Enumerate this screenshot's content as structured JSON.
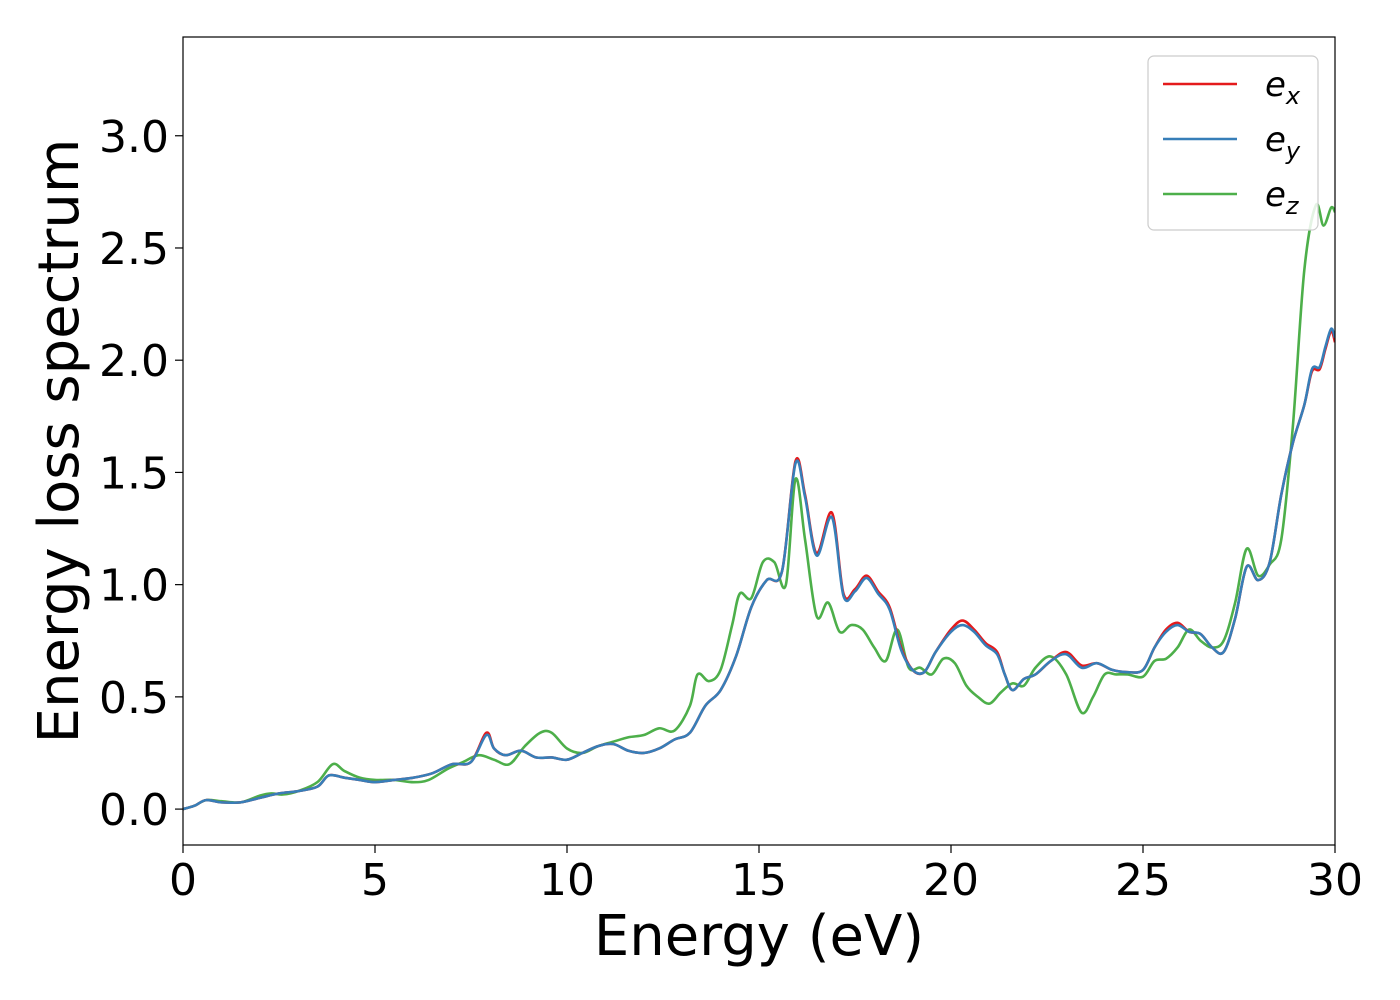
{
  "chart_data": {
    "type": "line",
    "title": "",
    "xlabel": "Energy (eV)",
    "ylabel": "Energy loss spectrum",
    "xlim": [
      0,
      30
    ],
    "ylim": [
      -0.16,
      3.44
    ],
    "xticks": [
      "0",
      "5",
      "10",
      "15",
      "20",
      "25",
      "30"
    ],
    "yticks": [
      "0.0",
      "0.5",
      "1.0",
      "1.5",
      "2.0",
      "2.5",
      "3.0"
    ],
    "grid": false,
    "legend_position": "top-right",
    "series": [
      {
        "name": "e_x",
        "label_main": "e",
        "label_sub": "x",
        "color": "#e41a1c",
        "x": [
          0,
          0.3,
          0.6,
          1.0,
          1.5,
          2.0,
          2.5,
          3.0,
          3.5,
          3.8,
          4.2,
          4.6,
          5.0,
          5.5,
          6.0,
          6.5,
          7.0,
          7.5,
          7.9,
          8.1,
          8.4,
          8.8,
          9.2,
          9.6,
          10.0,
          10.4,
          10.8,
          11.2,
          11.6,
          12.0,
          12.4,
          12.8,
          13.2,
          13.6,
          14.0,
          14.4,
          14.8,
          15.2,
          15.6,
          15.95,
          16.2,
          16.5,
          16.9,
          17.2,
          17.5,
          17.8,
          18.1,
          18.4,
          18.7,
          19.0,
          19.3,
          19.6,
          20.0,
          20.3,
          20.6,
          20.9,
          21.2,
          21.4,
          21.6,
          21.9,
          22.2,
          22.6,
          23.0,
          23.4,
          23.8,
          24.2,
          24.6,
          25.0,
          25.3,
          25.6,
          25.9,
          26.2,
          26.5,
          26.8,
          27.1,
          27.4,
          27.7,
          28.0,
          28.3,
          28.6,
          28.9,
          29.2,
          29.4,
          29.6,
          29.75,
          29.9,
          30.0
        ],
        "y": [
          0.0,
          0.015,
          0.04,
          0.03,
          0.03,
          0.05,
          0.07,
          0.08,
          0.1,
          0.15,
          0.14,
          0.13,
          0.12,
          0.13,
          0.14,
          0.16,
          0.2,
          0.21,
          0.34,
          0.27,
          0.24,
          0.26,
          0.23,
          0.23,
          0.22,
          0.25,
          0.28,
          0.29,
          0.26,
          0.25,
          0.27,
          0.31,
          0.34,
          0.46,
          0.53,
          0.68,
          0.9,
          1.02,
          1.06,
          1.55,
          1.4,
          1.14,
          1.32,
          0.96,
          0.98,
          1.04,
          0.97,
          0.9,
          0.72,
          0.62,
          0.61,
          0.7,
          0.8,
          0.84,
          0.8,
          0.74,
          0.7,
          0.6,
          0.53,
          0.58,
          0.6,
          0.66,
          0.7,
          0.64,
          0.65,
          0.62,
          0.61,
          0.62,
          0.72,
          0.8,
          0.83,
          0.79,
          0.78,
          0.72,
          0.7,
          0.85,
          1.08,
          1.02,
          1.1,
          1.4,
          1.63,
          1.8,
          1.95,
          1.96,
          2.05,
          2.13,
          2.08
        ]
      },
      {
        "name": "e_y",
        "label_main": "e",
        "label_sub": "y",
        "color": "#377eb8",
        "x": [
          0,
          0.3,
          0.6,
          1.0,
          1.5,
          2.0,
          2.5,
          3.0,
          3.5,
          3.8,
          4.2,
          4.6,
          5.0,
          5.5,
          6.0,
          6.5,
          7.0,
          7.5,
          7.9,
          8.1,
          8.4,
          8.8,
          9.2,
          9.6,
          10.0,
          10.4,
          10.8,
          11.2,
          11.6,
          12.0,
          12.4,
          12.8,
          13.2,
          13.6,
          14.0,
          14.4,
          14.8,
          15.2,
          15.6,
          15.95,
          16.2,
          16.5,
          16.9,
          17.2,
          17.5,
          17.8,
          18.1,
          18.4,
          18.7,
          19.0,
          19.3,
          19.6,
          20.0,
          20.3,
          20.6,
          20.9,
          21.2,
          21.4,
          21.6,
          21.9,
          22.2,
          22.6,
          23.0,
          23.4,
          23.8,
          24.2,
          24.6,
          25.0,
          25.3,
          25.6,
          25.9,
          26.2,
          26.5,
          26.8,
          27.1,
          27.4,
          27.7,
          28.0,
          28.3,
          28.6,
          28.9,
          29.2,
          29.4,
          29.6,
          29.75,
          29.9,
          30.0
        ],
        "y": [
          0.0,
          0.015,
          0.04,
          0.03,
          0.03,
          0.05,
          0.07,
          0.08,
          0.1,
          0.15,
          0.14,
          0.13,
          0.12,
          0.13,
          0.14,
          0.16,
          0.2,
          0.21,
          0.33,
          0.27,
          0.24,
          0.26,
          0.23,
          0.23,
          0.22,
          0.25,
          0.28,
          0.29,
          0.26,
          0.25,
          0.27,
          0.31,
          0.34,
          0.46,
          0.53,
          0.68,
          0.9,
          1.02,
          1.06,
          1.54,
          1.39,
          1.13,
          1.3,
          0.95,
          0.97,
          1.03,
          0.96,
          0.89,
          0.71,
          0.62,
          0.61,
          0.7,
          0.79,
          0.82,
          0.79,
          0.73,
          0.69,
          0.6,
          0.53,
          0.58,
          0.6,
          0.66,
          0.69,
          0.63,
          0.65,
          0.62,
          0.61,
          0.62,
          0.72,
          0.79,
          0.82,
          0.79,
          0.78,
          0.72,
          0.7,
          0.85,
          1.08,
          1.02,
          1.1,
          1.4,
          1.63,
          1.8,
          1.96,
          1.97,
          2.06,
          2.14,
          2.1
        ]
      },
      {
        "name": "e_z",
        "label_main": "e",
        "label_sub": "z",
        "color": "#4daf4a",
        "x": [
          0,
          0.3,
          0.6,
          1.0,
          1.5,
          2.0,
          2.3,
          2.6,
          3.0,
          3.5,
          3.9,
          4.2,
          4.6,
          5.0,
          5.5,
          6.0,
          6.4,
          6.9,
          7.3,
          7.7,
          8.1,
          8.5,
          8.9,
          9.3,
          9.6,
          10.0,
          10.4,
          10.8,
          11.2,
          11.6,
          12.0,
          12.4,
          12.8,
          13.2,
          13.4,
          13.7,
          14.0,
          14.3,
          14.5,
          14.8,
          15.1,
          15.4,
          15.7,
          15.95,
          16.2,
          16.5,
          16.8,
          17.1,
          17.4,
          17.7,
          18.0,
          18.3,
          18.6,
          18.9,
          19.2,
          19.5,
          19.8,
          20.1,
          20.4,
          20.7,
          21.0,
          21.3,
          21.6,
          21.9,
          22.2,
          22.6,
          23.0,
          23.4,
          23.7,
          24.0,
          24.3,
          24.6,
          25.0,
          25.3,
          25.6,
          25.9,
          26.2,
          26.5,
          26.8,
          27.1,
          27.4,
          27.7,
          28.0,
          28.3,
          28.6,
          28.9,
          29.2,
          29.5,
          29.7,
          29.9,
          30.0
        ],
        "y": [
          0.0,
          0.015,
          0.04,
          0.035,
          0.03,
          0.06,
          0.07,
          0.065,
          0.08,
          0.12,
          0.2,
          0.17,
          0.14,
          0.13,
          0.13,
          0.12,
          0.13,
          0.18,
          0.21,
          0.24,
          0.22,
          0.2,
          0.28,
          0.34,
          0.34,
          0.27,
          0.25,
          0.28,
          0.3,
          0.32,
          0.33,
          0.36,
          0.35,
          0.46,
          0.6,
          0.57,
          0.62,
          0.82,
          0.96,
          0.94,
          1.1,
          1.1,
          1.0,
          1.47,
          1.2,
          0.86,
          0.92,
          0.79,
          0.82,
          0.8,
          0.72,
          0.66,
          0.8,
          0.63,
          0.63,
          0.6,
          0.67,
          0.65,
          0.55,
          0.5,
          0.47,
          0.52,
          0.56,
          0.55,
          0.63,
          0.68,
          0.6,
          0.43,
          0.5,
          0.6,
          0.6,
          0.6,
          0.59,
          0.66,
          0.67,
          0.72,
          0.8,
          0.75,
          0.72,
          0.75,
          0.92,
          1.16,
          1.04,
          1.09,
          1.2,
          1.7,
          2.4,
          2.69,
          2.6,
          2.68,
          2.66
        ]
      }
    ]
  }
}
